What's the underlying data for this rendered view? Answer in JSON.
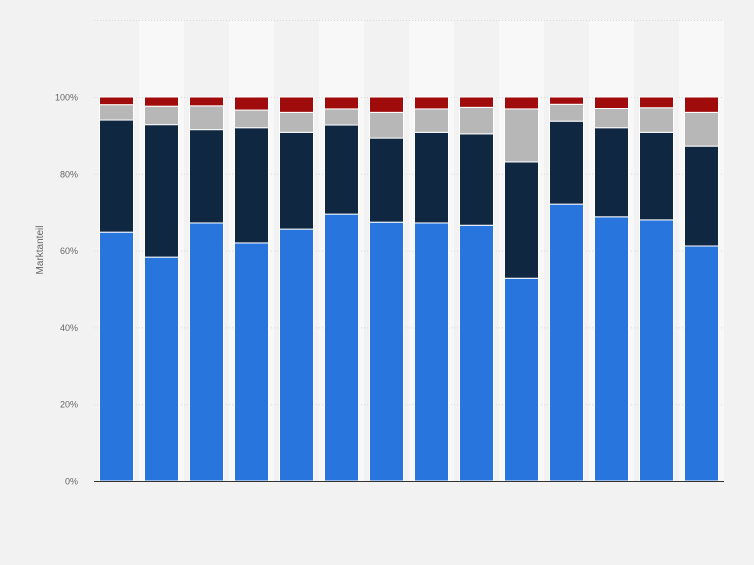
{
  "chart_data": {
    "type": "bar",
    "stacked": true,
    "ylabel": "Marktanteil",
    "ylim": [
      0,
      100
    ],
    "y_ticks": [
      "0%",
      "20%",
      "40%",
      "60%",
      "80%",
      "100%"
    ],
    "grid": true,
    "categories": [
      "",
      "",
      "",
      "",
      "",
      "",
      "",
      "",
      "",
      "",
      "",
      "",
      "",
      ""
    ],
    "series": [
      {
        "color": "#2876dd",
        "values": [
          64.8,
          58.3,
          67.2,
          62.0,
          65.6,
          69.5,
          67.4,
          67.2,
          66.6,
          52.8,
          72.1,
          68.8,
          68.0,
          61.2
        ]
      },
      {
        "color": "#0f2741",
        "values": [
          29.2,
          34.5,
          24.3,
          30.0,
          25.2,
          23.2,
          21.9,
          23.6,
          23.8,
          30.3,
          21.6,
          23.2,
          22.8,
          26.0
        ]
      },
      {
        "color": "#b7b7b7",
        "values": [
          4.0,
          4.8,
          6.2,
          4.6,
          5.2,
          4.2,
          6.7,
          6.1,
          6.9,
          13.8,
          4.4,
          5.0,
          6.4,
          8.8
        ]
      },
      {
        "color": "#a00c0c",
        "values": [
          2.0,
          2.4,
          2.3,
          3.4,
          4.0,
          3.1,
          4.0,
          3.1,
          2.7,
          3.1,
          1.9,
          3.0,
          2.8,
          4.0
        ]
      }
    ]
  }
}
